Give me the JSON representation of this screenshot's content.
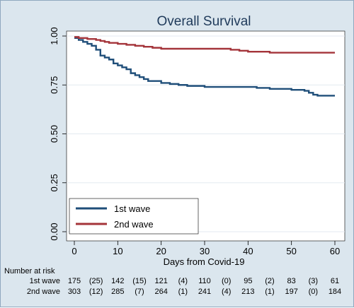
{
  "chart_data": {
    "type": "line",
    "title": "Overall Survival",
    "xlabel": "Days from Covid-19",
    "ylabel": "",
    "xlim": [
      0,
      60
    ],
    "ylim": [
      0,
      1
    ],
    "x_ticks": [
      0,
      10,
      20,
      30,
      40,
      50,
      60
    ],
    "x_tick_labels": [
      "0",
      "10",
      "20",
      "30",
      "40",
      "50",
      "60"
    ],
    "y_ticks": [
      0,
      0.25,
      0.5,
      0.75,
      1
    ],
    "y_tick_labels": [
      "0.00",
      "0.25",
      "0.50",
      "0.75",
      "1.00"
    ],
    "grid": "horizontal",
    "legend_position": "bottom-left",
    "series": [
      {
        "name": "1st wave",
        "color": "#1f4e79",
        "x": [
          0,
          1,
          2,
          3,
          4,
          5,
          6,
          7,
          8,
          9,
          10,
          11,
          12,
          13,
          14,
          15,
          16,
          17,
          18,
          19,
          20,
          22,
          24,
          26,
          30,
          35,
          40,
          42,
          45,
          50,
          53,
          54,
          55,
          56,
          60
        ],
        "y": [
          0.99,
          0.98,
          0.97,
          0.96,
          0.95,
          0.93,
          0.9,
          0.89,
          0.88,
          0.86,
          0.85,
          0.84,
          0.83,
          0.81,
          0.8,
          0.79,
          0.78,
          0.77,
          0.77,
          0.77,
          0.76,
          0.755,
          0.75,
          0.745,
          0.74,
          0.74,
          0.74,
          0.735,
          0.73,
          0.725,
          0.72,
          0.71,
          0.7,
          0.695,
          0.695
        ]
      },
      {
        "name": "2nd wave",
        "color": "#a4343a",
        "x": [
          0,
          1,
          3,
          5,
          6,
          7,
          8,
          10,
          12,
          14,
          16,
          18,
          20,
          25,
          30,
          35,
          36,
          38,
          40,
          45,
          50,
          55,
          60
        ],
        "y": [
          0.995,
          0.99,
          0.985,
          0.98,
          0.975,
          0.97,
          0.965,
          0.96,
          0.955,
          0.95,
          0.945,
          0.94,
          0.935,
          0.935,
          0.935,
          0.935,
          0.93,
          0.925,
          0.92,
          0.915,
          0.915,
          0.915,
          0.915
        ]
      }
    ],
    "risk_table": {
      "header": "Number at risk",
      "rows": [
        {
          "label": "1st wave",
          "cells": [
            {
              "x": 0,
              "text": "175"
            },
            {
              "x": 5,
              "text": "(25)"
            },
            {
              "x": 10,
              "text": "142"
            },
            {
              "x": 15,
              "text": "(15)"
            },
            {
              "x": 20,
              "text": "121"
            },
            {
              "x": 25,
              "text": "(4)"
            },
            {
              "x": 30,
              "text": "110"
            },
            {
              "x": 35,
              "text": "(0)"
            },
            {
              "x": 40,
              "text": "95"
            },
            {
              "x": 45,
              "text": "(2)"
            },
            {
              "x": 50,
              "text": "83"
            },
            {
              "x": 55,
              "text": "(3)"
            },
            {
              "x": 60,
              "text": "61"
            }
          ]
        },
        {
          "label": "2nd wave",
          "cells": [
            {
              "x": 0,
              "text": "303"
            },
            {
              "x": 5,
              "text": "(12)"
            },
            {
              "x": 10,
              "text": "285"
            },
            {
              "x": 15,
              "text": "(7)"
            },
            {
              "x": 20,
              "text": "264"
            },
            {
              "x": 25,
              "text": "(1)"
            },
            {
              "x": 30,
              "text": "241"
            },
            {
              "x": 35,
              "text": "(4)"
            },
            {
              "x": 40,
              "text": "213"
            },
            {
              "x": 45,
              "text": "(1)"
            },
            {
              "x": 50,
              "text": "197"
            },
            {
              "x": 55,
              "text": "(0)"
            },
            {
              "x": 60,
              "text": "184"
            }
          ]
        }
      ]
    }
  }
}
